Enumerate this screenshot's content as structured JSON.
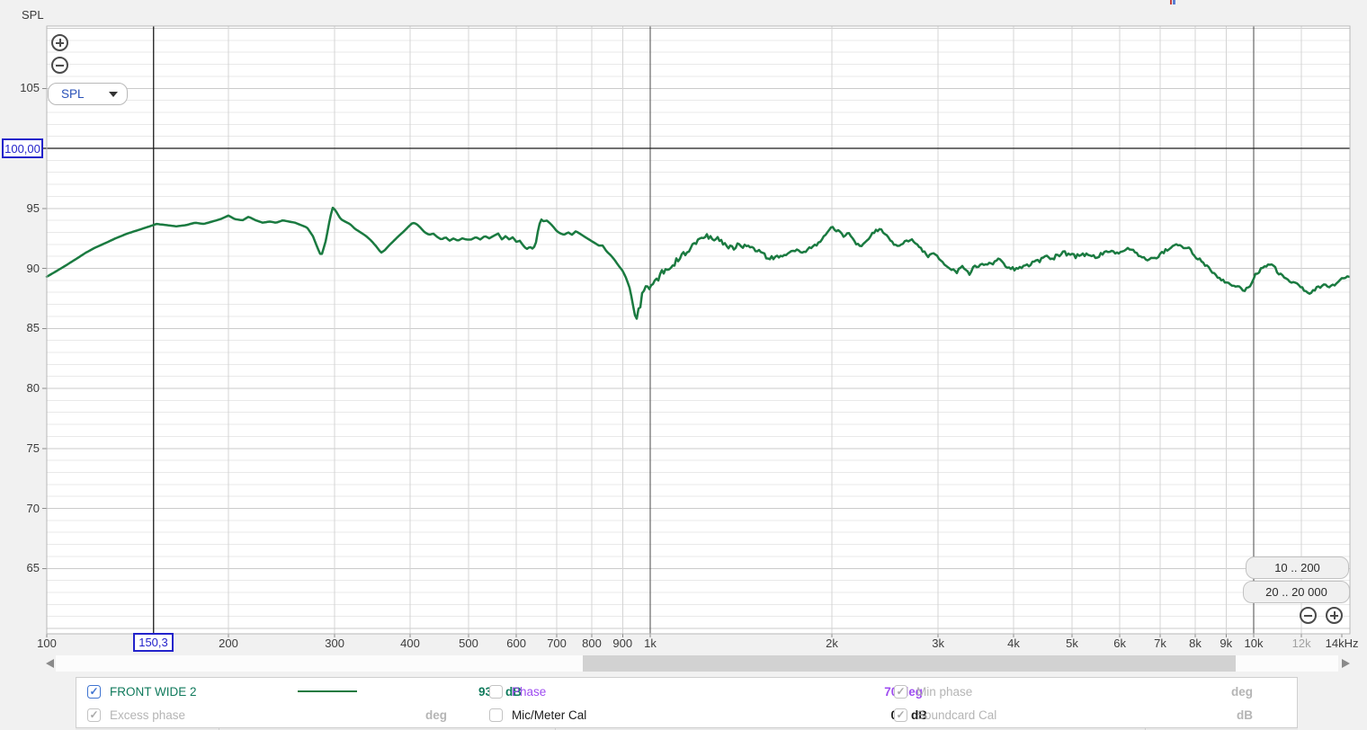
{
  "window": {
    "corner_axis_label": "SPL"
  },
  "theme": {
    "trace_green": "#1a7a40",
    "legend_green": "#107a5c",
    "purple": "#9e4cf0",
    "cursor_blue": "#2323cb",
    "muted_text": "#b5b5b5",
    "tick_text": "#3c3c3c"
  },
  "controls": {
    "graph_type": "SPL",
    "range_button_1": "10 .. 200",
    "range_button_2": "20 .. 20 000"
  },
  "cursor": {
    "freq": "150,3",
    "level": "100,00"
  },
  "chart_data": {
    "type": "line",
    "x_scale": "log",
    "x_unit": "Hz",
    "y_unit": "dB SPL",
    "xlim": [
      100,
      14440
    ],
    "ylim": [
      59.5,
      110.2
    ],
    "grid": {
      "db_minor_step": 1,
      "db_major_step": 5
    },
    "cursor": {
      "hz": 150.3,
      "db": 100.0
    },
    "y_ticks": [
      {
        "label": "105",
        "db": 105
      },
      {
        "label": "95",
        "db": 95
      },
      {
        "label": "90",
        "db": 90
      },
      {
        "label": "85",
        "db": 85
      },
      {
        "label": "80",
        "db": 80
      },
      {
        "label": "75",
        "db": 75
      },
      {
        "label": "70",
        "db": 70
      },
      {
        "label": "65",
        "db": 65
      }
    ],
    "x_ticks": [
      {
        "label": "100",
        "hz": 100,
        "grid": false
      },
      {
        "label": "200",
        "hz": 200,
        "grid": true
      },
      {
        "label": "300",
        "hz": 300,
        "grid": true
      },
      {
        "label": "400",
        "hz": 400,
        "grid": true
      },
      {
        "label": "500",
        "hz": 500,
        "grid": true
      },
      {
        "label": "600",
        "hz": 600,
        "grid": true
      },
      {
        "label": "700",
        "hz": 700,
        "grid": true
      },
      {
        "label": "800",
        "hz": 800,
        "grid": true
      },
      {
        "label": "900",
        "hz": 900,
        "grid": true
      },
      {
        "label": "1k",
        "hz": 1000,
        "grid": true,
        "decade": true
      },
      {
        "label": "2k",
        "hz": 2000,
        "grid": true
      },
      {
        "label": "3k",
        "hz": 3000,
        "grid": true
      },
      {
        "label": "4k",
        "hz": 4000,
        "grid": true
      },
      {
        "label": "5k",
        "hz": 5000,
        "grid": true
      },
      {
        "label": "6k",
        "hz": 6000,
        "grid": true
      },
      {
        "label": "7k",
        "hz": 7000,
        "grid": true
      },
      {
        "label": "8k",
        "hz": 8000,
        "grid": true
      },
      {
        "label": "9k",
        "hz": 9000,
        "grid": true
      },
      {
        "label": "10k",
        "hz": 10000,
        "grid": true,
        "decade": true
      },
      {
        "label": "12k",
        "hz": 12000,
        "grid": true,
        "muted": true
      },
      {
        "label": "14kHz",
        "hz": 14000,
        "grid": false
      }
    ],
    "series": [
      {
        "name": "FRONT WIDE 2",
        "color": "#1a7a40",
        "level_at_cursor_db": 93.8,
        "points": [
          [
            100,
            89.3
          ],
          [
            104,
            89.8
          ],
          [
            108,
            90.3
          ],
          [
            112,
            90.8
          ],
          [
            116,
            91.3
          ],
          [
            120,
            91.7
          ],
          [
            125,
            92.1
          ],
          [
            130,
            92.5
          ],
          [
            136,
            92.9
          ],
          [
            142,
            93.2
          ],
          [
            148,
            93.5
          ],
          [
            152,
            93.7
          ],
          [
            158,
            93.6
          ],
          [
            164,
            93.5
          ],
          [
            170,
            93.6
          ],
          [
            176,
            93.8
          ],
          [
            182,
            93.7
          ],
          [
            188,
            93.9
          ],
          [
            194,
            94.1
          ],
          [
            200,
            94.4
          ],
          [
            205,
            94.1
          ],
          [
            211,
            94.0
          ],
          [
            216,
            94.3
          ],
          [
            222,
            94.0
          ],
          [
            228,
            93.8
          ],
          [
            234,
            93.9
          ],
          [
            240,
            93.8
          ],
          [
            246,
            94.0
          ],
          [
            252,
            93.9
          ],
          [
            258,
            93.8
          ],
          [
            264,
            93.6
          ],
          [
            270,
            93.4
          ],
          [
            276,
            92.7
          ],
          [
            281,
            91.7
          ],
          [
            285,
            91.0
          ],
          [
            290,
            92.3
          ],
          [
            295,
            94.3
          ],
          [
            298,
            95.1
          ],
          [
            302,
            94.7
          ],
          [
            307,
            94.1
          ],
          [
            312,
            93.9
          ],
          [
            318,
            93.7
          ],
          [
            324,
            93.3
          ],
          [
            331,
            93.0
          ],
          [
            338,
            92.7
          ],
          [
            345,
            92.3
          ],
          [
            352,
            91.8
          ],
          [
            358,
            91.3
          ],
          [
            363,
            91.5
          ],
          [
            369,
            91.9
          ],
          [
            376,
            92.3
          ],
          [
            383,
            92.7
          ],
          [
            391,
            93.1
          ],
          [
            398,
            93.5
          ],
          [
            404,
            93.8
          ],
          [
            410,
            93.7
          ],
          [
            416,
            93.4
          ],
          [
            423,
            93.0
          ],
          [
            430,
            92.8
          ],
          [
            437,
            92.9
          ],
          [
            444,
            92.6
          ],
          [
            451,
            92.4
          ],
          [
            458,
            92.6
          ],
          [
            465,
            92.3
          ],
          [
            472,
            92.5
          ],
          [
            480,
            92.3
          ],
          [
            488,
            92.5
          ],
          [
            496,
            92.4
          ],
          [
            505,
            92.4
          ],
          [
            514,
            92.6
          ],
          [
            523,
            92.4
          ],
          [
            532,
            92.7
          ],
          [
            541,
            92.5
          ],
          [
            550,
            92.7
          ],
          [
            560,
            92.9
          ],
          [
            568,
            92.4
          ],
          [
            576,
            92.7
          ],
          [
            584,
            92.4
          ],
          [
            592,
            92.6
          ],
          [
            600,
            92.2
          ],
          [
            608,
            92.3
          ],
          [
            616,
            91.9
          ],
          [
            624,
            91.6
          ],
          [
            632,
            91.8
          ],
          [
            640,
            91.6
          ],
          [
            647,
            92.2
          ],
          [
            653,
            93.4
          ],
          [
            659,
            94.1
          ],
          [
            666,
            93.9
          ],
          [
            673,
            94.0
          ],
          [
            681,
            93.8
          ],
          [
            690,
            93.5
          ],
          [
            700,
            93.1
          ],
          [
            710,
            92.9
          ],
          [
            720,
            92.8
          ],
          [
            731,
            93.0
          ],
          [
            742,
            92.8
          ],
          [
            753,
            93.1
          ],
          [
            764,
            92.9
          ],
          [
            775,
            92.7
          ],
          [
            786,
            92.5
          ],
          [
            798,
            92.3
          ],
          [
            810,
            92.1
          ],
          [
            822,
            91.9
          ],
          [
            834,
            91.9
          ],
          [
            847,
            91.4
          ],
          [
            860,
            91.1
          ],
          [
            873,
            90.7
          ],
          [
            887,
            90.2
          ],
          [
            900,
            89.8
          ],
          [
            912,
            89.2
          ],
          [
            924,
            88.4
          ],
          [
            933,
            87.4
          ],
          [
            941,
            86.3
          ],
          [
            948,
            85.7
          ],
          [
            955,
            86.1
          ],
          [
            962,
            86.9
          ],
          [
            969,
            87.8
          ],
          [
            975,
            88.4
          ],
          [
            981,
            88.1
          ],
          [
            988,
            88.7
          ],
          [
            995,
            88.5
          ],
          [
            1002,
            88.9
          ],
          [
            1010,
            88.6
          ],
          [
            1020,
            89.1
          ],
          [
            1031,
            89.0
          ],
          [
            1043,
            89.4
          ],
          [
            1056,
            89.6
          ],
          [
            1070,
            89.9
          ],
          [
            1085,
            90.3
          ],
          [
            1101,
            90.7
          ],
          [
            1118,
            90.9
          ],
          [
            1136,
            91.2
          ],
          [
            1155,
            91.5
          ],
          [
            1175,
            91.9
          ],
          [
            1196,
            92.2
          ],
          [
            1218,
            92.5
          ],
          [
            1241,
            92.8
          ],
          [
            1265,
            92.5
          ],
          [
            1290,
            92.6
          ],
          [
            1316,
            92.2
          ],
          [
            1343,
            91.9
          ],
          [
            1371,
            91.7
          ],
          [
            1400,
            91.9
          ],
          [
            1430,
            91.8
          ],
          [
            1461,
            92.0
          ],
          [
            1493,
            91.6
          ],
          [
            1526,
            91.3
          ],
          [
            1560,
            90.9
          ],
          [
            1595,
            90.8
          ],
          [
            1631,
            91.0
          ],
          [
            1668,
            91.1
          ],
          [
            1706,
            91.4
          ],
          [
            1745,
            91.5
          ],
          [
            1785,
            91.3
          ],
          [
            1826,
            91.6
          ],
          [
            1868,
            91.8
          ],
          [
            1911,
            92.2
          ],
          [
            1955,
            92.9
          ],
          [
            2000,
            93.5
          ],
          [
            2046,
            93.1
          ],
          [
            2093,
            92.7
          ],
          [
            2141,
            92.9
          ],
          [
            2190,
            92.1
          ],
          [
            2240,
            91.9
          ],
          [
            2291,
            92.4
          ],
          [
            2344,
            93.0
          ],
          [
            2398,
            93.3
          ],
          [
            2453,
            92.9
          ],
          [
            2509,
            92.3
          ],
          [
            2567,
            91.8
          ],
          [
            2626,
            92.1
          ],
          [
            2686,
            92.4
          ],
          [
            2748,
            92.2
          ],
          [
            2811,
            91.6
          ],
          [
            2875,
            91.0
          ],
          [
            2941,
            91.3
          ],
          [
            3009,
            90.8
          ],
          [
            3078,
            90.4
          ],
          [
            3149,
            90.0
          ],
          [
            3221,
            89.7
          ],
          [
            3295,
            90.2
          ],
          [
            3371,
            89.5
          ],
          [
            3448,
            90.1
          ],
          [
            3527,
            90.4
          ],
          [
            3608,
            90.2
          ],
          [
            3691,
            90.4
          ],
          [
            3776,
            90.7
          ],
          [
            3863,
            90.3
          ],
          [
            3951,
            90.0
          ],
          [
            4042,
            89.9
          ],
          [
            4135,
            90.0
          ],
          [
            4230,
            90.3
          ],
          [
            4327,
            90.5
          ],
          [
            4427,
            90.7
          ],
          [
            4529,
            90.9
          ],
          [
            4633,
            90.8
          ],
          [
            4740,
            91.1
          ],
          [
            4849,
            91.3
          ],
          [
            4960,
            91.1
          ],
          [
            5074,
            91.0
          ],
          [
            5191,
            91.1
          ],
          [
            5311,
            91.2
          ],
          [
            5433,
            91.0
          ],
          [
            5558,
            91.1
          ],
          [
            5686,
            91.3
          ],
          [
            5817,
            91.4
          ],
          [
            5951,
            91.3
          ],
          [
            6088,
            91.4
          ],
          [
            6228,
            91.7
          ],
          [
            6371,
            91.3
          ],
          [
            6518,
            91.0
          ],
          [
            6668,
            90.7
          ],
          [
            6821,
            90.8
          ],
          [
            6978,
            91.1
          ],
          [
            7139,
            91.5
          ],
          [
            7303,
            91.8
          ],
          [
            7471,
            92.0
          ],
          [
            7643,
            91.8
          ],
          [
            7819,
            91.6
          ],
          [
            7999,
            91.0
          ],
          [
            8183,
            90.6
          ],
          [
            8371,
            90.2
          ],
          [
            8564,
            89.6
          ],
          [
            8761,
            89.2
          ],
          [
            8963,
            88.9
          ],
          [
            9169,
            88.7
          ],
          [
            9380,
            88.5
          ],
          [
            9596,
            88.2
          ],
          [
            9817,
            88.3
          ],
          [
            10043,
            89.4
          ],
          [
            10274,
            89.9
          ],
          [
            10510,
            90.2
          ],
          [
            10752,
            90.3
          ],
          [
            11000,
            89.6
          ],
          [
            11253,
            89.2
          ],
          [
            11512,
            88.9
          ],
          [
            11777,
            88.7
          ],
          [
            12048,
            88.3
          ],
          [
            12325,
            87.9
          ],
          [
            12609,
            88.2
          ],
          [
            12899,
            88.5
          ],
          [
            13196,
            88.6
          ],
          [
            13500,
            88.5
          ],
          [
            13810,
            88.9
          ],
          [
            14100,
            89.2
          ],
          [
            14440,
            89.4
          ]
        ]
      }
    ]
  },
  "legend": {
    "row1": {
      "front_checked": true,
      "value": "93,8 dB",
      "phase_label": "Phase",
      "phase_checked": false,
      "phase_value": "70 deg",
      "min_phase_label": "Min phase",
      "min_phase_checked": true,
      "min_phase_unit": "deg"
    },
    "row2": {
      "excess_label": "Excess phase",
      "excess_checked": true,
      "excess_unit": "deg",
      "mic_label": "Mic/Meter Cal",
      "mic_checked": false,
      "mic_value": "0,5 dB",
      "soundcard_label": "Soundcard Cal",
      "soundcard_checked": true,
      "soundcard_unit": "dB"
    }
  }
}
